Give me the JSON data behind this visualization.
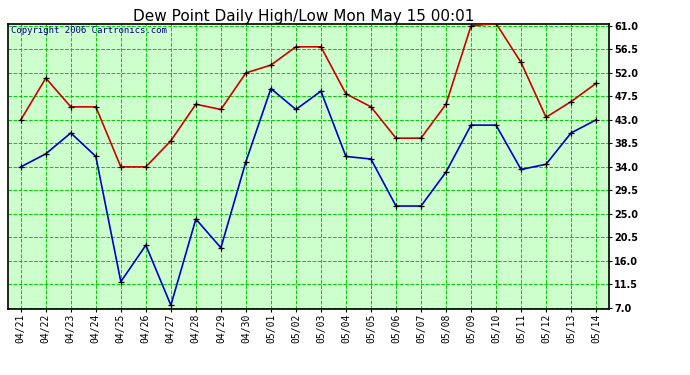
{
  "title": "Dew Point Daily High/Low Mon May 15 00:01",
  "copyright": "Copyright 2006 Cartronics.com",
  "dates": [
    "04/21",
    "04/22",
    "04/23",
    "04/24",
    "04/25",
    "04/26",
    "04/27",
    "04/28",
    "04/29",
    "04/30",
    "05/01",
    "05/02",
    "05/03",
    "05/04",
    "05/05",
    "05/06",
    "05/07",
    "05/08",
    "05/09",
    "05/10",
    "05/11",
    "05/12",
    "05/13",
    "05/14"
  ],
  "high_red": [
    43.0,
    51.0,
    45.5,
    45.5,
    34.0,
    34.0,
    39.0,
    46.0,
    45.0,
    52.0,
    53.5,
    57.0,
    57.0,
    48.0,
    45.5,
    39.5,
    39.5,
    46.0,
    61.0,
    61.5,
    54.0,
    43.5,
    46.5,
    50.0
  ],
  "low_blue": [
    34.0,
    36.5,
    40.5,
    36.0,
    12.0,
    19.0,
    7.5,
    24.0,
    18.5,
    35.0,
    49.0,
    45.0,
    48.5,
    36.0,
    35.5,
    26.5,
    26.5,
    33.0,
    42.0,
    42.0,
    33.5,
    34.5,
    40.5,
    43.0
  ],
  "ylim_min": 7.0,
  "ylim_max": 61.0,
  "ytick_vals": [
    7.0,
    11.5,
    16.0,
    20.5,
    25.0,
    29.5,
    34.0,
    38.5,
    43.0,
    47.5,
    52.0,
    56.5,
    61.0
  ],
  "plot_bg_color": "#ccffcc",
  "fig_bg_color": "#ffffff",
  "grid_color": "#00cc00",
  "title_fontsize": 11,
  "tick_fontsize": 7,
  "copyright_fontsize": 6.5,
  "red_color": "#cc0000",
  "blue_color": "#0000cc",
  "border_color": "#000000",
  "copyright_color": "#000088"
}
